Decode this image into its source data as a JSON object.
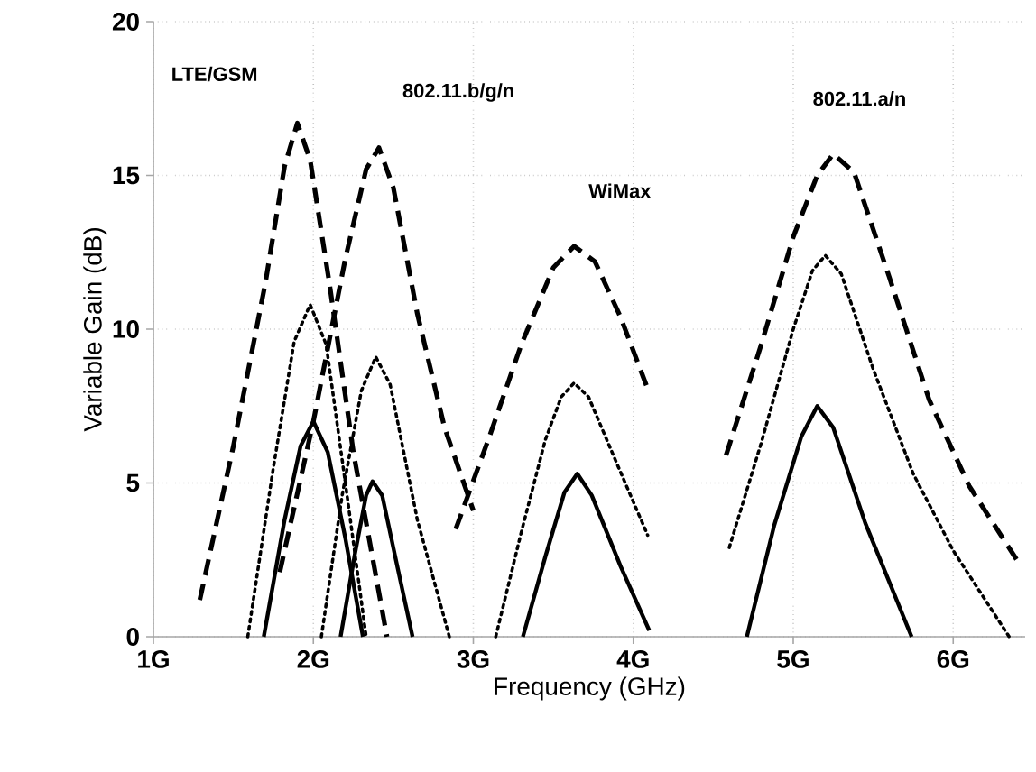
{
  "chart_data": {
    "type": "line",
    "xlabel": "Frequency (GHz)",
    "ylabel": "Variable Gain (dB)",
    "xlim": [
      1,
      6.45
    ],
    "ylim": [
      0,
      20
    ],
    "xticks": [
      {
        "value": 1,
        "label": "1G"
      },
      {
        "value": 2,
        "label": "2G"
      },
      {
        "value": 3,
        "label": "3G"
      },
      {
        "value": 4,
        "label": "4G"
      },
      {
        "value": 5,
        "label": "5G"
      },
      {
        "value": 6,
        "label": "6G"
      }
    ],
    "yticks": [
      0,
      5,
      10,
      15,
      20
    ],
    "grid": true,
    "annotations": [
      "LTE/GSM",
      "802.11.b/g/n",
      "WiMax",
      "802.11.a/n"
    ],
    "series": [
      {
        "color": "#000000",
        "line_style": "dashed",
        "x": [
          1.29,
          1.5,
          1.7,
          1.82,
          1.9,
          1.98,
          2.1,
          2.25,
          2.46
        ],
        "values": [
          1.2,
          6.2,
          11.5,
          15.3,
          16.7,
          15.5,
          11.5,
          6,
          0
        ]
      },
      {
        "color": "#000000",
        "line_style": "dotted",
        "x": [
          1.59,
          1.75,
          1.88,
          1.98,
          2.08,
          2.2,
          2.33
        ],
        "values": [
          0,
          5.5,
          9.6,
          10.8,
          9.5,
          5,
          0
        ]
      },
      {
        "color": "#000000",
        "line_style": "solid",
        "x": [
          1.69,
          1.82,
          1.92,
          2.0,
          2.09,
          2.2,
          2.31
        ],
        "values": [
          0,
          3.8,
          6.2,
          7.0,
          6.0,
          3.2,
          0
        ]
      },
      {
        "color": "#000000",
        "line_style": "dashed",
        "x": [
          1.79,
          2.0,
          2.2,
          2.33,
          2.41,
          2.5,
          2.65,
          2.82,
          3.0
        ],
        "values": [
          2.1,
          7,
          12.3,
          15.2,
          15.9,
          14.6,
          10.5,
          6.8,
          4.1
        ]
      },
      {
        "color": "#000000",
        "line_style": "dotted",
        "x": [
          2.05,
          2.18,
          2.3,
          2.39,
          2.48,
          2.65,
          2.85
        ],
        "values": [
          0,
          4.6,
          8.0,
          9.1,
          8.2,
          3.8,
          0
        ]
      },
      {
        "color": "#000000",
        "line_style": "solid",
        "x": [
          2.17,
          2.26,
          2.33,
          2.37,
          2.43,
          2.52,
          2.62
        ],
        "values": [
          0,
          2.7,
          4.6,
          5.05,
          4.6,
          2.4,
          0
        ]
      },
      {
        "color": "#000000",
        "line_style": "dashed",
        "x": [
          2.89,
          3.1,
          3.3,
          3.5,
          3.63,
          3.76,
          3.92,
          4.09
        ],
        "values": [
          3.5,
          6.5,
          9.5,
          12,
          12.7,
          12.2,
          10.4,
          8.06
        ]
      },
      {
        "color": "#000000",
        "line_style": "dotted",
        "x": [
          3.14,
          3.3,
          3.45,
          3.55,
          3.63,
          3.72,
          3.9,
          4.09
        ],
        "values": [
          0,
          3.4,
          6.4,
          7.8,
          8.25,
          7.8,
          5.6,
          3.3
        ]
      },
      {
        "color": "#000000",
        "line_style": "solid",
        "x": [
          3.31,
          3.45,
          3.57,
          3.65,
          3.74,
          3.92,
          4.1
        ],
        "values": [
          0,
          2.6,
          4.7,
          5.3,
          4.6,
          2.3,
          0.2
        ]
      },
      {
        "color": "#000000",
        "line_style": "dashed",
        "x": [
          4.58,
          4.8,
          5.0,
          5.15,
          5.25,
          5.38,
          5.6,
          5.85,
          6.1,
          6.41
        ],
        "values": [
          5.9,
          9.5,
          13,
          15,
          15.7,
          15.1,
          11.7,
          7.7,
          4.9,
          2.4
        ]
      },
      {
        "color": "#000000",
        "line_style": "dotted",
        "x": [
          4.6,
          4.8,
          5.0,
          5.12,
          5.2,
          5.3,
          5.5,
          5.75,
          6.0,
          6.35
        ],
        "values": [
          2.9,
          6.3,
          10,
          11.9,
          12.4,
          11.8,
          8.7,
          5.3,
          2.8,
          0
        ]
      },
      {
        "color": "#000000",
        "line_style": "solid",
        "x": [
          4.71,
          4.88,
          5.05,
          5.15,
          5.25,
          5.45,
          5.74
        ],
        "values": [
          0,
          3.6,
          6.5,
          7.5,
          6.8,
          3.7,
          0
        ]
      }
    ]
  }
}
